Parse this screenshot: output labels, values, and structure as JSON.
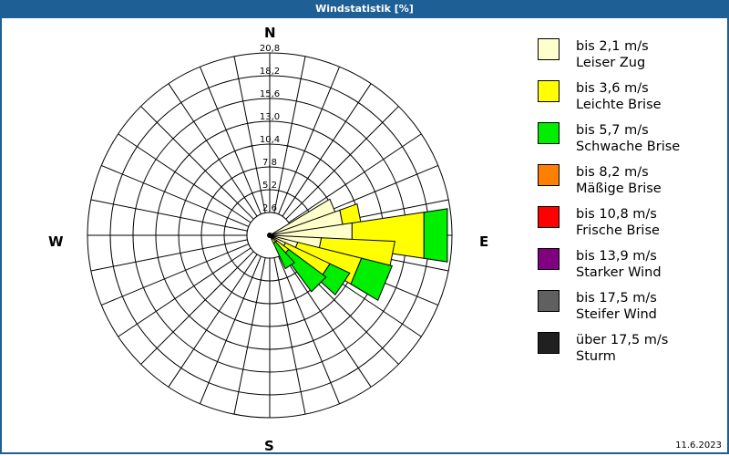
{
  "window": {
    "title": "Windstatistik [%]"
  },
  "footer": {
    "date": "11.6.2023"
  },
  "cardinals": {
    "n": "N",
    "e": "E",
    "s": "S",
    "w": "W"
  },
  "legend": [
    {
      "speed": "bis 2,1 m/s",
      "name": "Leiser Zug",
      "color": "#ffffcc"
    },
    {
      "speed": "bis 3,6 m/s",
      "name": "Leichte Brise",
      "color": "#ffff00"
    },
    {
      "speed": "bis 5,7 m/s",
      "name": "Schwache Brise",
      "color": "#00ee00"
    },
    {
      "speed": "bis 8,2 m/s",
      "name": "Mäßige Brise",
      "color": "#ff8000"
    },
    {
      "speed": "bis 10,8 m/s",
      "name": "Frische Brise",
      "color": "#ff0000"
    },
    {
      "speed": "bis 13,9 m/s",
      "name": "Starker Wind",
      "color": "#800080"
    },
    {
      "speed": "bis 17,5 m/s",
      "name": "Steifer Wind",
      "color": "#606060"
    },
    {
      "speed": "über 17,5 m/s",
      "name": "Sturm",
      "color": "#202020"
    }
  ],
  "chart_data": {
    "type": "wind-rose",
    "title": "Windstatistik [%]",
    "unit": "%",
    "sectors": 32,
    "ring_ticks": [
      "2,6",
      "5,2",
      "7,8",
      "10,4",
      "13,0",
      "15,6",
      "18,2",
      "20,8"
    ],
    "rmax": 20.8,
    "series_names": [
      "Leiser Zug",
      "Leichte Brise",
      "Schwache Brise",
      "Mäßige Brise",
      "Frische Brise",
      "Starker Wind",
      "Steifer Wind",
      "Sturm"
    ],
    "bars": [
      {
        "bearing": 67.5,
        "cumulative": [
          8.0,
          8.0,
          8.0
        ]
      },
      {
        "bearing": 78.75,
        "cumulative": [
          8.5,
          10.6,
          10.6
        ]
      },
      {
        "bearing": 90.0,
        "cumulative": [
          9.5,
          17.8,
          20.5
        ]
      },
      {
        "bearing": 101.25,
        "cumulative": [
          5.9,
          14.3,
          14.3
        ]
      },
      {
        "bearing": 112.5,
        "cumulative": [
          3.3,
          10.8,
          14.4
        ]
      },
      {
        "bearing": 123.75,
        "cumulative": [
          2.0,
          7.6,
          10.1
        ]
      },
      {
        "bearing": 135.0,
        "cumulative": [
          1.0,
          2.7,
          8.0
        ]
      },
      {
        "bearing": 146.25,
        "cumulative": [
          0.5,
          1.0,
          4.2
        ]
      }
    ]
  }
}
